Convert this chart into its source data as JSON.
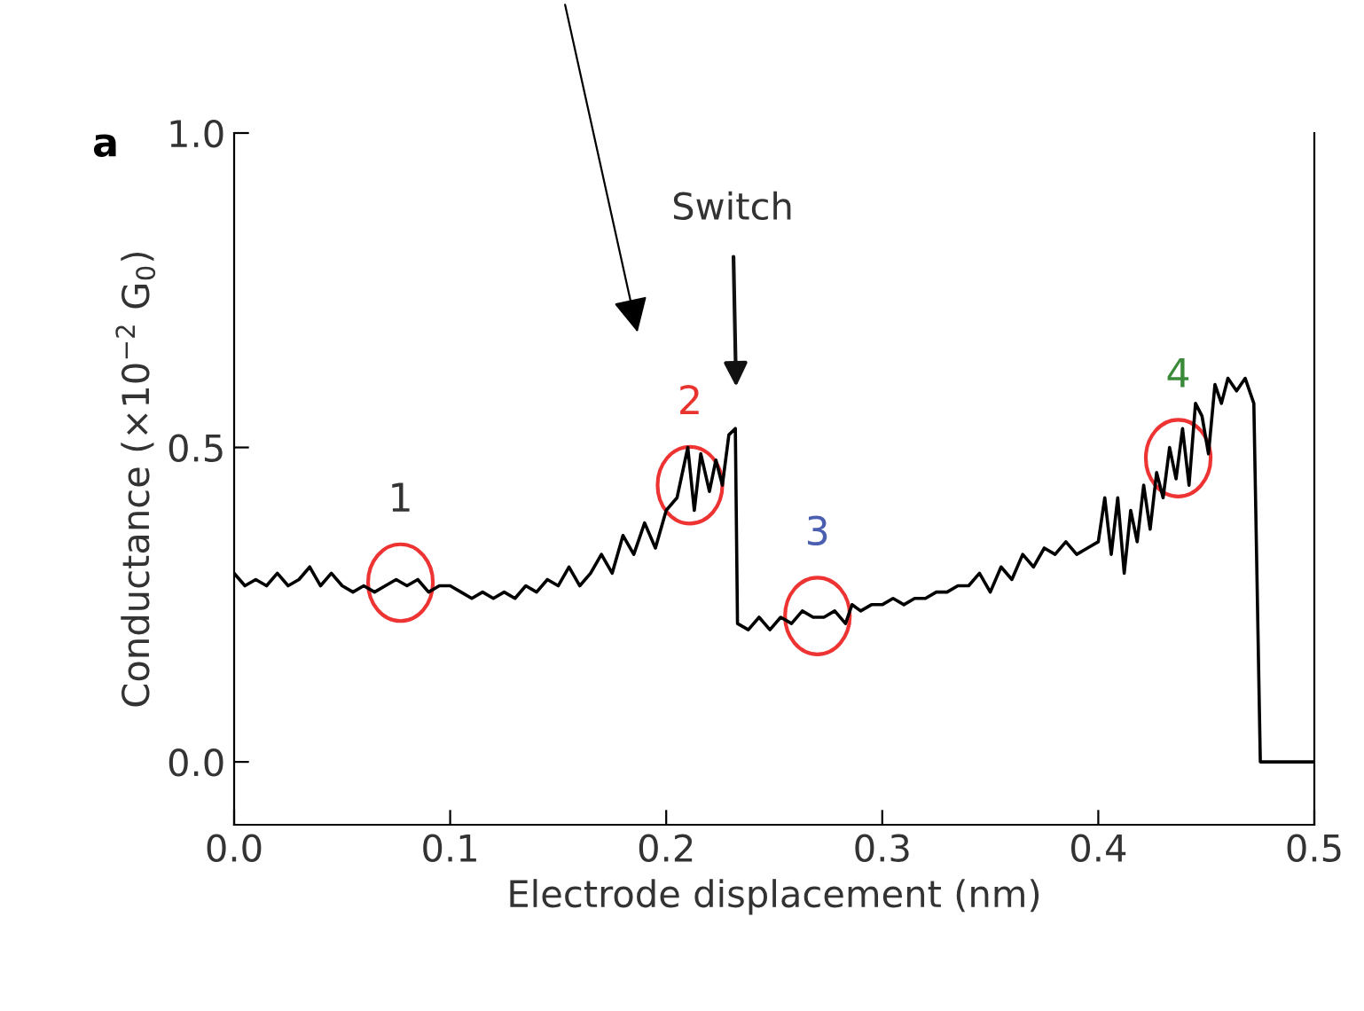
{
  "chart_data": {
    "type": "line",
    "xlabel": "Electrode displacement (nm)",
    "ylabel": "Conductance (×10$^{−2}$ G$_{0}$)",
    "xlim": [
      0,
      0.5
    ],
    "xticks": [
      {
        "value": 0,
        "label": "0.0"
      },
      0.1,
      0.2,
      0.3,
      0.4,
      0.5
    ],
    "ylim": [
      -0.1,
      1.0
    ],
    "yticks": [
      {
        "value": 0,
        "label": "0.0"
      },
      0.5,
      {
        "value": 1,
        "label": "1.0"
      }
    ],
    "grid": false,
    "legend": false,
    "annotations": [
      "a",
      "Switch",
      {
        "text": "1",
        "x": 0.077,
        "y": 0.285
      },
      {
        "text": "2",
        "x": 0.211,
        "y": 0.44
      },
      {
        "text": "3",
        "x": 0.27,
        "y": 0.232
      },
      {
        "text": "4",
        "x": 0.437,
        "y": 0.483
      }
    ],
    "series": [
      {
        "color": "#000000",
        "x": [
          0.0,
          0.005,
          0.01,
          0.015,
          0.02,
          0.025,
          0.03,
          0.035,
          0.04,
          0.045,
          0.05,
          0.055,
          0.06,
          0.065,
          0.07,
          0.075,
          0.08,
          0.085,
          0.09,
          0.095,
          0.1,
          0.105,
          0.11,
          0.115,
          0.12,
          0.125,
          0.13,
          0.135,
          0.14,
          0.145,
          0.15,
          0.155,
          0.16,
          0.165,
          0.17,
          0.175,
          0.18,
          0.185,
          0.19,
          0.195,
          0.2,
          0.205,
          0.21,
          0.213,
          0.216,
          0.22,
          0.223,
          0.226,
          0.229,
          0.232,
          0.233,
          0.238,
          0.243,
          0.248,
          0.253,
          0.258,
          0.263,
          0.268,
          0.273,
          0.278,
          0.283,
          0.286,
          0.29,
          0.295,
          0.3,
          0.305,
          0.31,
          0.315,
          0.32,
          0.325,
          0.33,
          0.335,
          0.34,
          0.345,
          0.35,
          0.355,
          0.36,
          0.365,
          0.37,
          0.375,
          0.38,
          0.385,
          0.39,
          0.395,
          0.4,
          0.403,
          0.406,
          0.409,
          0.412,
          0.415,
          0.418,
          0.421,
          0.424,
          0.427,
          0.43,
          0.433,
          0.436,
          0.439,
          0.442,
          0.445,
          0.448,
          0.451,
          0.454,
          0.457,
          0.46,
          0.464,
          0.468,
          0.472,
          0.475,
          0.48,
          0.49,
          0.5
        ],
        "values": [
          0.3,
          0.28,
          0.29,
          0.28,
          0.3,
          0.28,
          0.29,
          0.31,
          0.28,
          0.3,
          0.28,
          0.27,
          0.28,
          0.27,
          0.28,
          0.29,
          0.28,
          0.29,
          0.27,
          0.28,
          0.28,
          0.27,
          0.26,
          0.27,
          0.26,
          0.27,
          0.26,
          0.28,
          0.27,
          0.29,
          0.28,
          0.31,
          0.28,
          0.3,
          0.33,
          0.3,
          0.36,
          0.33,
          0.38,
          0.34,
          0.4,
          0.42,
          0.5,
          0.4,
          0.49,
          0.43,
          0.48,
          0.44,
          0.52,
          0.53,
          0.22,
          0.21,
          0.23,
          0.21,
          0.23,
          0.22,
          0.24,
          0.23,
          0.23,
          0.24,
          0.22,
          0.25,
          0.24,
          0.25,
          0.25,
          0.26,
          0.25,
          0.26,
          0.26,
          0.27,
          0.27,
          0.28,
          0.28,
          0.3,
          0.27,
          0.31,
          0.29,
          0.33,
          0.31,
          0.34,
          0.33,
          0.35,
          0.33,
          0.34,
          0.35,
          0.42,
          0.33,
          0.42,
          0.3,
          0.4,
          0.35,
          0.44,
          0.37,
          0.46,
          0.42,
          0.5,
          0.45,
          0.53,
          0.44,
          0.57,
          0.55,
          0.49,
          0.6,
          0.57,
          0.61,
          0.59,
          0.61,
          0.57,
          0.0,
          0.0,
          0.0,
          0.0
        ]
      }
    ]
  }
}
